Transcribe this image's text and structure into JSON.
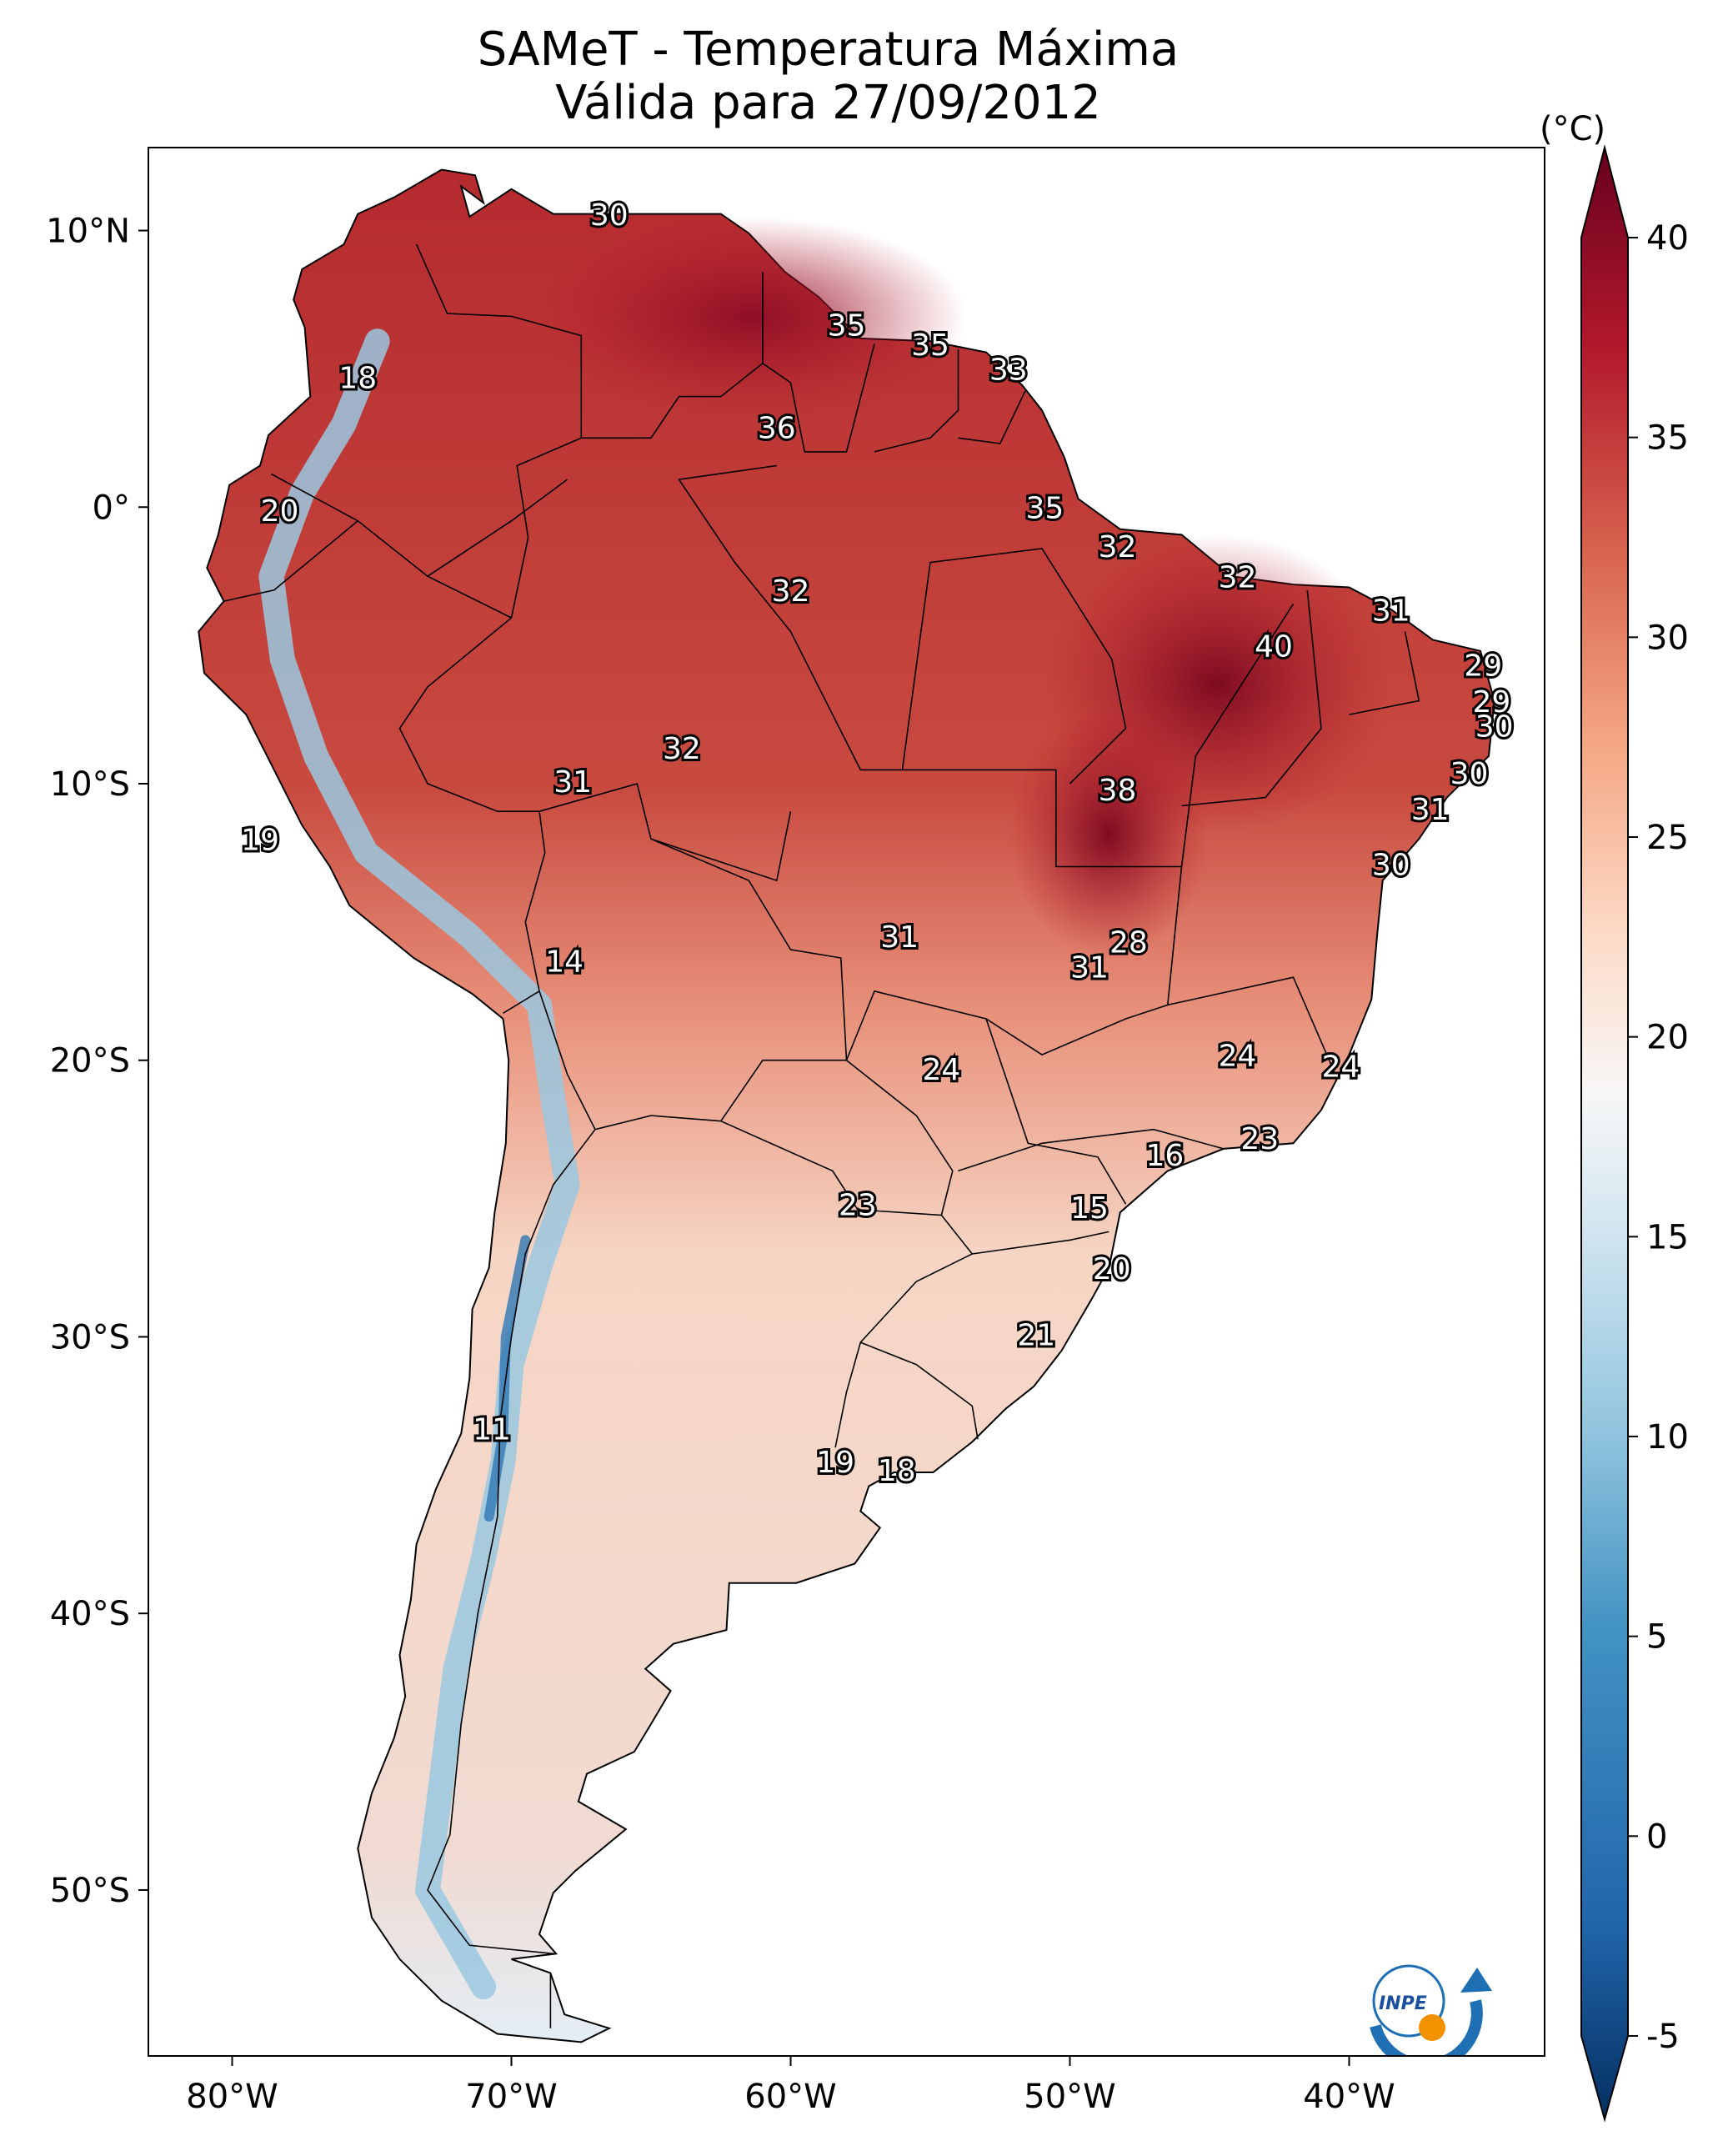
{
  "title": {
    "line1": "SAMeT - Temperatura Máxima",
    "line2": "Válida para 27/09/2012"
  },
  "axes": {
    "lon_ticks": [
      "80°W",
      "70°W",
      "60°W",
      "50°W",
      "40°W"
    ],
    "lat_ticks": [
      "10°N",
      "0°",
      "10°S",
      "20°S",
      "30°S",
      "40°S",
      "50°S"
    ],
    "lon_range": [
      -83,
      -33
    ],
    "lat_range": [
      -56,
      13
    ]
  },
  "colorbar": {
    "unit": "(°C)",
    "ticks": [
      "40",
      "35",
      "30",
      "25",
      "20",
      "15",
      "10",
      "5",
      "0",
      "-5"
    ],
    "range": [
      -5,
      40
    ],
    "extend": "both",
    "colormap": "RdBu_r",
    "colors": {
      "min": "#053061",
      "low": "#2166ac",
      "midlow": "#92c5de",
      "mid": "#f7f7f7",
      "midhigh": "#f4a582",
      "high": "#d6604d",
      "max": "#67001f"
    }
  },
  "station_labels": [
    {
      "text": "30",
      "lon": -66.5,
      "lat": 10.5
    },
    {
      "text": "35",
      "lon": -58.0,
      "lat": 6.5
    },
    {
      "text": "35",
      "lon": -55.0,
      "lat": 5.8
    },
    {
      "text": "33",
      "lon": -52.2,
      "lat": 4.9
    },
    {
      "text": "36",
      "lon": -60.5,
      "lat": 2.8
    },
    {
      "text": "18",
      "lon": -75.5,
      "lat": 4.6
    },
    {
      "text": "20",
      "lon": -78.3,
      "lat": -0.2
    },
    {
      "text": "35",
      "lon": -50.9,
      "lat": -0.1
    },
    {
      "text": "32",
      "lon": -48.3,
      "lat": -1.5
    },
    {
      "text": "32",
      "lon": -60.0,
      "lat": -3.1
    },
    {
      "text": "32",
      "lon": -44.0,
      "lat": -2.6
    },
    {
      "text": "31",
      "lon": -38.5,
      "lat": -3.8
    },
    {
      "text": "40",
      "lon": -42.7,
      "lat": -5.1
    },
    {
      "text": "29",
      "lon": -35.2,
      "lat": -5.8
    },
    {
      "text": "29",
      "lon": -34.9,
      "lat": -7.1
    },
    {
      "text": "30",
      "lon": -34.8,
      "lat": -8.0
    },
    {
      "text": "32",
      "lon": -63.9,
      "lat": -8.8
    },
    {
      "text": "30",
      "lon": -35.7,
      "lat": -9.7
    },
    {
      "text": "31",
      "lon": -67.8,
      "lat": -10.0
    },
    {
      "text": "38",
      "lon": -48.3,
      "lat": -10.3
    },
    {
      "text": "31",
      "lon": -37.1,
      "lat": -11.0
    },
    {
      "text": "19",
      "lon": -79.0,
      "lat": -12.1
    },
    {
      "text": "30",
      "lon": -38.5,
      "lat": -13.0
    },
    {
      "text": "31",
      "lon": -56.1,
      "lat": -15.6
    },
    {
      "text": "28",
      "lon": -47.9,
      "lat": -15.8
    },
    {
      "text": "14",
      "lon": -68.1,
      "lat": -16.5
    },
    {
      "text": "31",
      "lon": -49.3,
      "lat": -16.7
    },
    {
      "text": "24",
      "lon": -44.0,
      "lat": -19.9
    },
    {
      "text": "24",
      "lon": -54.6,
      "lat": -20.4
    },
    {
      "text": "24",
      "lon": -40.3,
      "lat": -20.3
    },
    {
      "text": "23",
      "lon": -43.2,
      "lat": -22.9
    },
    {
      "text": "16",
      "lon": -46.6,
      "lat": -23.5
    },
    {
      "text": "23",
      "lon": -57.6,
      "lat": -25.3
    },
    {
      "text": "15",
      "lon": -49.3,
      "lat": -25.4
    },
    {
      "text": "20",
      "lon": -48.5,
      "lat": -27.6
    },
    {
      "text": "21",
      "lon": -51.2,
      "lat": -30.0
    },
    {
      "text": "11",
      "lon": -70.7,
      "lat": -33.4
    },
    {
      "text": "19",
      "lon": -58.4,
      "lat": -34.6
    },
    {
      "text": "18",
      "lon": -56.2,
      "lat": -34.9
    }
  ],
  "logo": {
    "text": "INPE"
  }
}
